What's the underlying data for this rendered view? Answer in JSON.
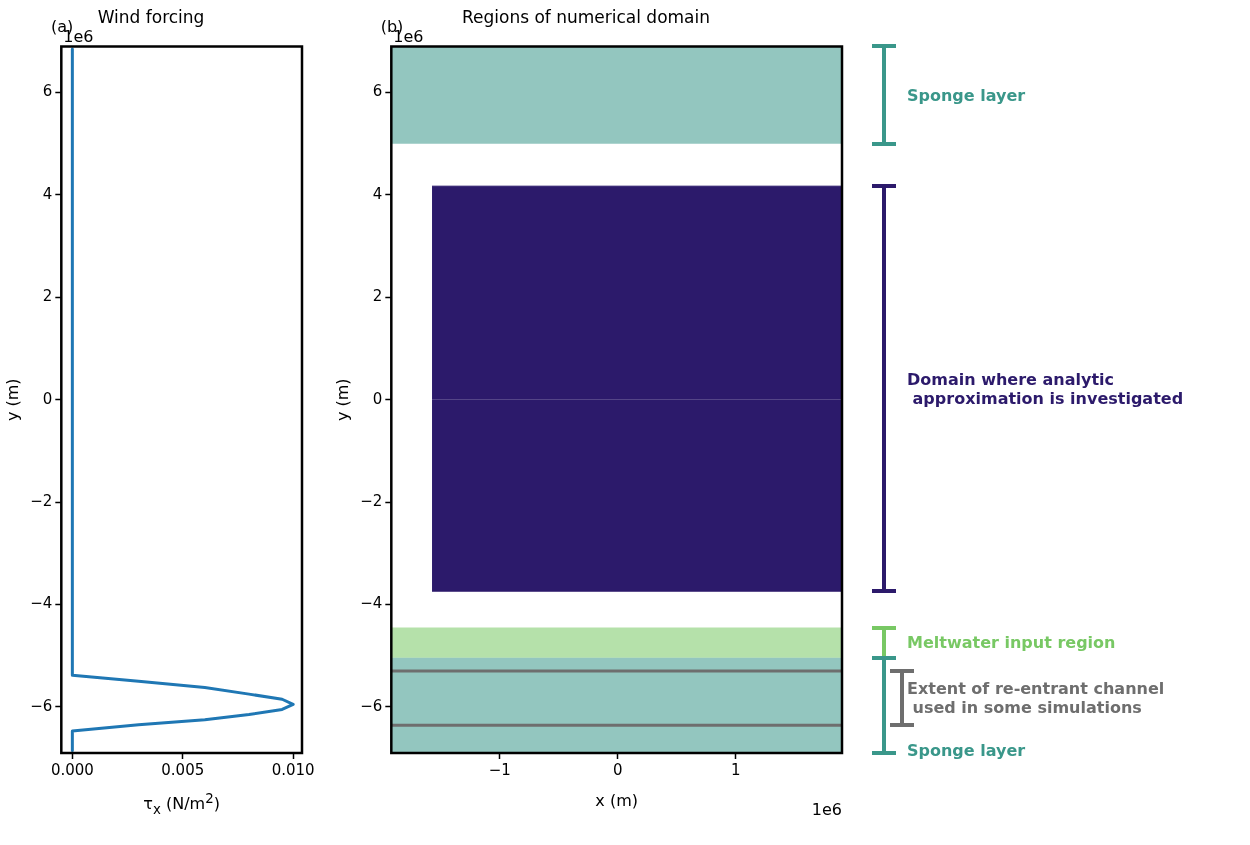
{
  "chart_data": [
    {
      "type": "line",
      "title": "Wind forcing",
      "xlabel": "τ$_{x}$ (N/m$^{2}$)",
      "ylabel": "y (m)",
      "series": [
        {
          "color": "#1f77b4",
          "x": [
            0,
            0,
            0.003,
            0.006,
            0.008,
            0.0095,
            0.01,
            0.0095,
            0.008,
            0.006,
            0.003,
            0,
            0
          ],
          "values": [
            6.85,
            -5.38,
            -5.5,
            -5.62,
            -5.75,
            -5.85,
            -5.95,
            -6.05,
            -6.15,
            -6.25,
            -6.35,
            -6.47,
            -6.85
          ]
        }
      ],
      "xlim": [
        -0.0005,
        0.0104
      ],
      "ylim": [
        -6.9,
        6.9
      ],
      "xticks": [
        {
          "value": 0,
          "label": "0.000"
        },
        {
          "value": 0.005,
          "label": "0.005"
        },
        {
          "value": 0.01,
          "label": "0.010"
        }
      ],
      "yticks": [
        {
          "value": -6,
          "label": "−6"
        },
        {
          "value": -4,
          "label": "−4"
        },
        {
          "value": -2,
          "label": "−2"
        },
        0,
        2,
        4,
        6
      ],
      "annotations": [
        "(a)",
        "1e6"
      ]
    },
    {
      "type": "area",
      "title": "Regions of numerical domain",
      "xlabel": "x (m)",
      "ylabel": "y (m)",
      "series": [
        {
          "name": "Domain where analytic\n approximation is investigated",
          "color": "#2c1a6b",
          "x": [
            -1.575,
            1.9
          ],
          "values": [
            4.17,
            4.17
          ]
        },
        {
          "color": "#2c1a6b",
          "x": [
            -1.575,
            1.9
          ],
          "values": [
            -3.74,
            -3.74
          ]
        }
      ],
      "bands": [
        {
          "axis": "y",
          "from": 5.0,
          "to": 6.9,
          "label": "Sponge layer",
          "color": "#3a978a"
        },
        {
          "axis": "y",
          "from": -4.45,
          "to": -5.04,
          "label": "Meltwater input region",
          "color": "#78c864"
        },
        {
          "axis": "y",
          "from": -5.04,
          "to": -6.9,
          "label": "Sponge layer",
          "color": "#3a978a"
        }
      ],
      "ref_lines": [
        {
          "axis": "y",
          "value": -5.3,
          "color": "#6e6e6e"
        },
        {
          "axis": "y",
          "value": -6.36,
          "color": "#6e6e6e"
        }
      ],
      "xlim": [
        -1.92,
        1.9
      ],
      "ylim": [
        -6.9,
        6.9
      ],
      "xticks": [
        {
          "value": -1,
          "label": "−1"
        },
        0,
        1
      ],
      "yticks": [
        {
          "value": -6,
          "label": "−6"
        },
        {
          "value": -4,
          "label": "−4"
        },
        {
          "value": -2,
          "label": "−2"
        },
        0,
        2,
        4,
        6
      ],
      "annotations": [
        "(b)",
        "1e6",
        "1e6",
        "Extent of re-entrant channel\n used in some simulations"
      ]
    }
  ]
}
